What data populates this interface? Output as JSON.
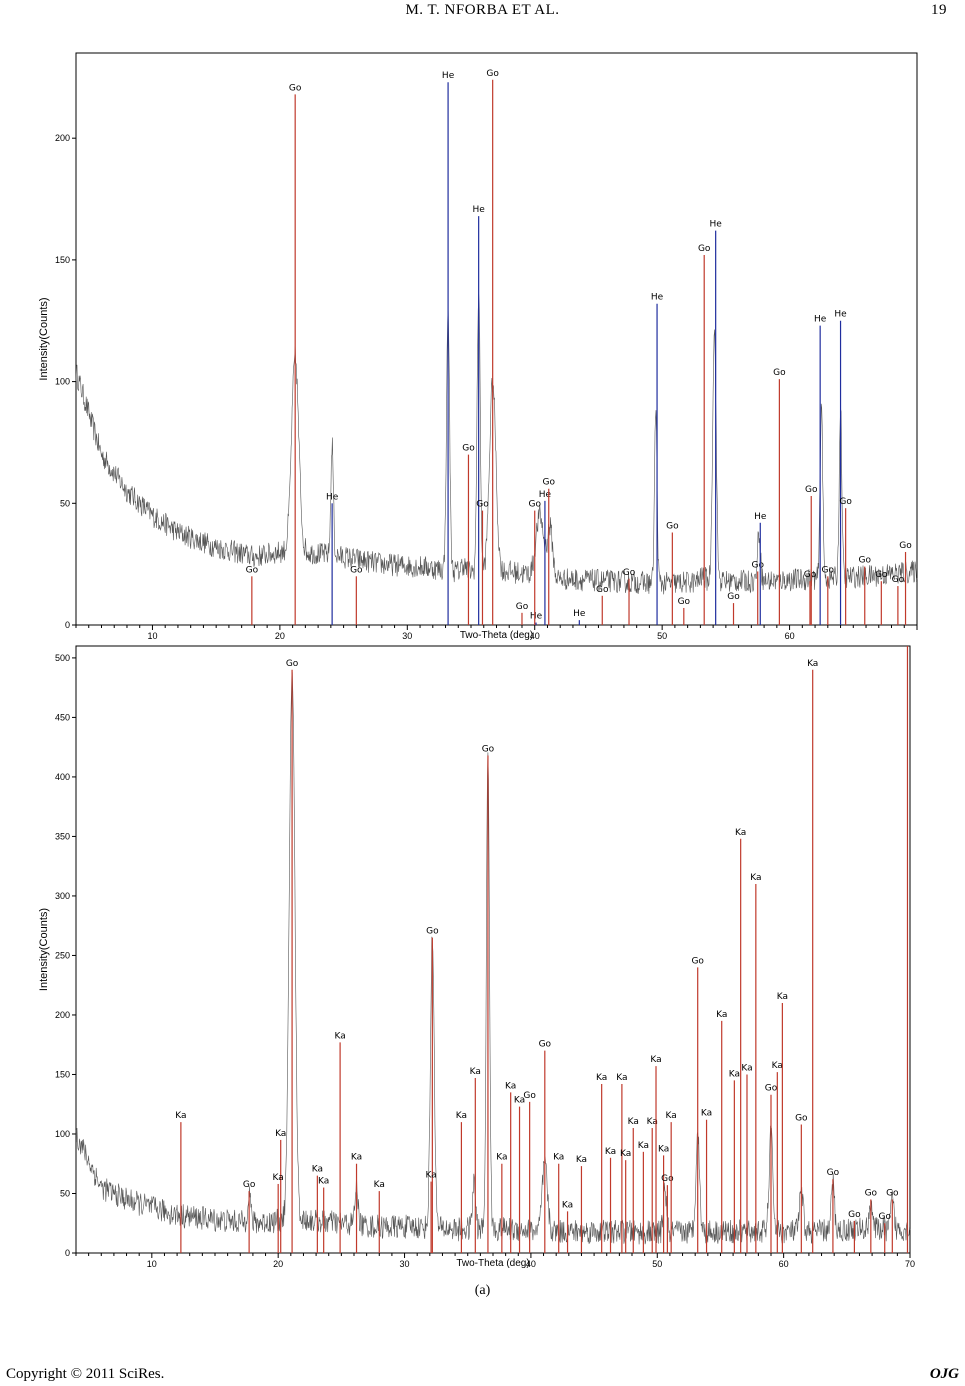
{
  "header": {
    "title": "M. T. NFORBA ET AL.",
    "page": "19"
  },
  "caption": "(a)",
  "footer": {
    "left": "Copyright © 2011 SciRes.",
    "right": "OJG"
  },
  "colors": {
    "go": "#c0392b",
    "he": "#1f2d9e",
    "ka": "#c0392b",
    "trace": "#555555"
  },
  "chart_data": [
    {
      "type": "line",
      "xlabel": "Two-Theta (deg)",
      "ylabel": "Intensity(Counts)",
      "xlim": [
        4,
        70
      ],
      "ylim": [
        0,
        235
      ],
      "x_ticks": [
        10,
        20,
        30,
        40,
        50,
        60
      ],
      "y_ticks": [
        0,
        50,
        100,
        150,
        200
      ],
      "background": [
        [
          4,
          104
        ],
        [
          6,
          70
        ],
        [
          8,
          55
        ],
        [
          10,
          45
        ],
        [
          12,
          38
        ],
        [
          15,
          32
        ],
        [
          18,
          28
        ],
        [
          20,
          30
        ],
        [
          22,
          30
        ],
        [
          25,
          28
        ],
        [
          28,
          25
        ],
        [
          31,
          24
        ],
        [
          34,
          22
        ],
        [
          38,
          22
        ],
        [
          42,
          19
        ],
        [
          46,
          18
        ],
        [
          50,
          17
        ],
        [
          54,
          18
        ],
        [
          58,
          18
        ],
        [
          62,
          19
        ],
        [
          66,
          20
        ],
        [
          70,
          22
        ]
      ],
      "trace_peaks": [
        [
          21.2,
          110,
          0.28
        ],
        [
          24.1,
          74,
          0.1
        ],
        [
          33.2,
          130,
          0.12
        ],
        [
          35.6,
          138,
          0.12
        ],
        [
          36.7,
          100,
          0.25
        ],
        [
          40.4,
          45,
          0.3
        ],
        [
          41.2,
          40,
          0.2
        ],
        [
          49.5,
          88,
          0.1
        ],
        [
          54.1,
          120,
          0.14
        ],
        [
          57.6,
          38,
          0.12
        ],
        [
          62.5,
          92,
          0.1
        ],
        [
          64.0,
          89,
          0.1
        ],
        [
          34.4,
          25,
          0.15
        ],
        [
          53.2,
          20,
          0.2
        ]
      ],
      "phases": [
        {
          "x": 17.8,
          "y": 20,
          "label": "Go",
          "phase": "go"
        },
        {
          "x": 21.2,
          "y": 218,
          "label": "Go",
          "phase": "go"
        },
        {
          "x": 24.1,
          "y": 50,
          "label": "He",
          "phase": "he"
        },
        {
          "x": 26.0,
          "y": 20,
          "label": "Go",
          "phase": "go"
        },
        {
          "x": 33.2,
          "y": 223,
          "label": "He",
          "phase": "he"
        },
        {
          "x": 34.8,
          "y": 70,
          "label": "Go",
          "phase": "go"
        },
        {
          "x": 35.6,
          "y": 168,
          "label": "He",
          "phase": "he"
        },
        {
          "x": 35.9,
          "y": 47,
          "label": "Go",
          "phase": "go"
        },
        {
          "x": 36.7,
          "y": 224,
          "label": "Go",
          "phase": "go"
        },
        {
          "x": 39.0,
          "y": 5,
          "label": "Go",
          "phase": "go"
        },
        {
          "x": 40.1,
          "y": 1,
          "label": "He",
          "phase": "he"
        },
        {
          "x": 40.0,
          "y": 47,
          "label": "Go",
          "phase": "go"
        },
        {
          "x": 40.8,
          "y": 51,
          "label": "He",
          "phase": "he"
        },
        {
          "x": 41.1,
          "y": 56,
          "label": "Go",
          "phase": "go"
        },
        {
          "x": 43.5,
          "y": 2,
          "label": "He",
          "phase": "he"
        },
        {
          "x": 45.3,
          "y": 12,
          "label": "Go",
          "phase": "go"
        },
        {
          "x": 47.4,
          "y": 19,
          "label": "Go",
          "phase": "go"
        },
        {
          "x": 49.6,
          "y": 132,
          "label": "He",
          "phase": "he"
        },
        {
          "x": 50.8,
          "y": 38,
          "label": "Go",
          "phase": "go"
        },
        {
          "x": 51.7,
          "y": 7,
          "label": "Go",
          "phase": "go"
        },
        {
          "x": 53.3,
          "y": 152,
          "label": "Go",
          "phase": "go"
        },
        {
          "x": 54.2,
          "y": 162,
          "label": "He",
          "phase": "he"
        },
        {
          "x": 55.6,
          "y": 9,
          "label": "Go",
          "phase": "go"
        },
        {
          "x": 57.5,
          "y": 22,
          "label": "Go",
          "phase": "go"
        },
        {
          "x": 57.7,
          "y": 42,
          "label": "He",
          "phase": "he"
        },
        {
          "x": 59.2,
          "y": 101,
          "label": "Go",
          "phase": "go"
        },
        {
          "x": 61.6,
          "y": 18,
          "label": "Go",
          "phase": "go"
        },
        {
          "x": 61.7,
          "y": 53,
          "label": "Go",
          "phase": "go"
        },
        {
          "x": 62.4,
          "y": 123,
          "label": "He",
          "phase": "he"
        },
        {
          "x": 63.0,
          "y": 20,
          "label": "Go",
          "phase": "go"
        },
        {
          "x": 64.0,
          "y": 125,
          "label": "He",
          "phase": "he"
        },
        {
          "x": 64.4,
          "y": 48,
          "label": "Go",
          "phase": "go"
        },
        {
          "x": 65.9,
          "y": 24,
          "label": "Go",
          "phase": "go"
        },
        {
          "x": 67.2,
          "y": 18,
          "label": "Go",
          "phase": "go"
        },
        {
          "x": 68.5,
          "y": 16,
          "label": "Go",
          "phase": "go"
        },
        {
          "x": 69.1,
          "y": 30,
          "label": "Go",
          "phase": "go"
        }
      ]
    },
    {
      "type": "line",
      "xlabel": "Two-Theta (deg)",
      "ylabel": "Intensity(Counts)",
      "xlim": [
        4,
        70
      ],
      "ylim": [
        0,
        510
      ],
      "x_ticks": [
        10,
        20,
        30,
        40,
        50,
        60,
        70
      ],
      "y_ticks": [
        0,
        50,
        100,
        150,
        200,
        250,
        300,
        350,
        400,
        450,
        500
      ],
      "background": [
        [
          4,
          100
        ],
        [
          6,
          55
        ],
        [
          8,
          45
        ],
        [
          10,
          38
        ],
        [
          12,
          32
        ],
        [
          15,
          28
        ],
        [
          18,
          25
        ],
        [
          20,
          27
        ],
        [
          22,
          28
        ],
        [
          25,
          25
        ],
        [
          28,
          22
        ],
        [
          31,
          22
        ],
        [
          34,
          20
        ],
        [
          38,
          20
        ],
        [
          42,
          18
        ],
        [
          46,
          18
        ],
        [
          50,
          17
        ],
        [
          54,
          18
        ],
        [
          58,
          18
        ],
        [
          62,
          18
        ],
        [
          66,
          20
        ],
        [
          70,
          20
        ]
      ],
      "trace_peaks": [
        [
          21.1,
          490,
          0.22
        ],
        [
          32.2,
          265,
          0.15
        ],
        [
          36.6,
          418,
          0.12
        ],
        [
          17.7,
          52,
          0.12
        ],
        [
          26.2,
          58,
          0.12
        ],
        [
          41.1,
          75,
          0.2
        ],
        [
          53.2,
          100,
          0.15
        ],
        [
          59.0,
          100,
          0.15
        ],
        [
          61.4,
          50,
          0.15
        ],
        [
          63.9,
          60,
          0.12
        ],
        [
          66.9,
          45,
          0.12
        ],
        [
          68.6,
          45,
          0.12
        ],
        [
          35.5,
          60,
          0.12
        ],
        [
          50.6,
          55,
          0.12
        ]
      ],
      "phases": [
        {
          "x": 12.3,
          "y": 110,
          "label": "Ka",
          "phase": "ka"
        },
        {
          "x": 17.7,
          "y": 52,
          "label": "Go",
          "phase": "go"
        },
        {
          "x": 20.2,
          "y": 95,
          "label": "Ka",
          "phase": "ka"
        },
        {
          "x": 21.1,
          "y": 490,
          "label": "Go",
          "phase": "go"
        },
        {
          "x": 20.0,
          "y": 58,
          "label": "Ka",
          "phase": "ka"
        },
        {
          "x": 23.1,
          "y": 65,
          "label": "Ka",
          "phase": "ka"
        },
        {
          "x": 23.6,
          "y": 55,
          "label": "Ka",
          "phase": "ka"
        },
        {
          "x": 24.9,
          "y": 177,
          "label": "Ka",
          "phase": "ka"
        },
        {
          "x": 26.2,
          "y": 75,
          "label": "Ka",
          "phase": "ka"
        },
        {
          "x": 28.0,
          "y": 52,
          "label": "Ka",
          "phase": "ka"
        },
        {
          "x": 32.2,
          "y": 265,
          "label": "Go",
          "phase": "go"
        },
        {
          "x": 32.1,
          "y": 60,
          "label": "Ka",
          "phase": "ka"
        },
        {
          "x": 34.5,
          "y": 110,
          "label": "Ka",
          "phase": "ka"
        },
        {
          "x": 35.6,
          "y": 147,
          "label": "Ka",
          "phase": "ka"
        },
        {
          "x": 36.6,
          "y": 418,
          "label": "Go",
          "phase": "go"
        },
        {
          "x": 37.7,
          "y": 75,
          "label": "Ka",
          "phase": "ka"
        },
        {
          "x": 38.4,
          "y": 135,
          "label": "Ka",
          "phase": "ka"
        },
        {
          "x": 39.1,
          "y": 123,
          "label": "Ka",
          "phase": "ka"
        },
        {
          "x": 39.9,
          "y": 127,
          "label": "Go",
          "phase": "go"
        },
        {
          "x": 41.1,
          "y": 170,
          "label": "Go",
          "phase": "go"
        },
        {
          "x": 42.2,
          "y": 75,
          "label": "Ka",
          "phase": "ka"
        },
        {
          "x": 42.9,
          "y": 35,
          "label": "Ka",
          "phase": "ka"
        },
        {
          "x": 44.0,
          "y": 73,
          "label": "Ka",
          "phase": "ka"
        },
        {
          "x": 45.6,
          "y": 142,
          "label": "Ka",
          "phase": "ka"
        },
        {
          "x": 46.3,
          "y": 80,
          "label": "Ka",
          "phase": "ka"
        },
        {
          "x": 47.2,
          "y": 142,
          "label": "Ka",
          "phase": "ka"
        },
        {
          "x": 47.5,
          "y": 78,
          "label": "Ka",
          "phase": "ka"
        },
        {
          "x": 48.1,
          "y": 105,
          "label": "Ka",
          "phase": "ka"
        },
        {
          "x": 48.9,
          "y": 85,
          "label": "Ka",
          "phase": "ka"
        },
        {
          "x": 49.6,
          "y": 105,
          "label": "Ka",
          "phase": "ka"
        },
        {
          "x": 49.9,
          "y": 157,
          "label": "Ka",
          "phase": "ka"
        },
        {
          "x": 50.5,
          "y": 82,
          "label": "Ka",
          "phase": "ka"
        },
        {
          "x": 50.8,
          "y": 57,
          "label": "Go",
          "phase": "go"
        },
        {
          "x": 51.1,
          "y": 110,
          "label": "Ka",
          "phase": "ka"
        },
        {
          "x": 53.2,
          "y": 240,
          "label": "Go",
          "phase": "go"
        },
        {
          "x": 53.9,
          "y": 112,
          "label": "Ka",
          "phase": "ka"
        },
        {
          "x": 55.1,
          "y": 195,
          "label": "Ka",
          "phase": "ka"
        },
        {
          "x": 56.1,
          "y": 145,
          "label": "Ka",
          "phase": "ka"
        },
        {
          "x": 56.6,
          "y": 348,
          "label": "Ka",
          "phase": "ka"
        },
        {
          "x": 57.1,
          "y": 150,
          "label": "Ka",
          "phase": "ka"
        },
        {
          "x": 57.8,
          "y": 310,
          "label": "Ka",
          "phase": "ka"
        },
        {
          "x": 59.0,
          "y": 133,
          "label": "Go",
          "phase": "go"
        },
        {
          "x": 59.5,
          "y": 152,
          "label": "Ka",
          "phase": "ka"
        },
        {
          "x": 59.9,
          "y": 210,
          "label": "Ka",
          "phase": "ka"
        },
        {
          "x": 61.4,
          "y": 108,
          "label": "Go",
          "phase": "go"
        },
        {
          "x": 62.3,
          "y": 490,
          "label": "Ka",
          "phase": "ka"
        },
        {
          "x": 63.9,
          "y": 62,
          "label": "Go",
          "phase": "go"
        },
        {
          "x": 65.6,
          "y": 27,
          "label": "Go",
          "phase": "go"
        },
        {
          "x": 66.9,
          "y": 45,
          "label": "Go",
          "phase": "go"
        },
        {
          "x": 68.0,
          "y": 25,
          "label": "Go",
          "phase": "go"
        },
        {
          "x": 68.6,
          "y": 45,
          "label": "Go",
          "phase": "go"
        },
        {
          "x": 69.8,
          "y": 510,
          "label": "",
          "phase": "ka"
        }
      ]
    }
  ]
}
